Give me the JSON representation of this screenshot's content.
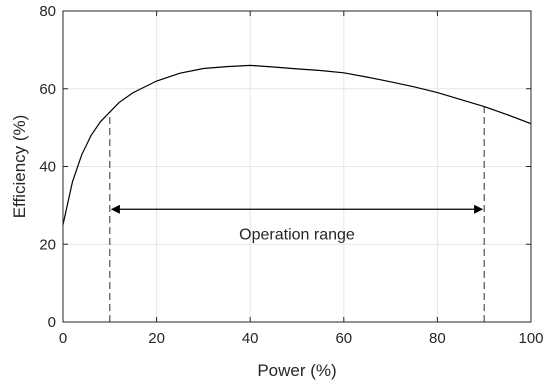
{
  "chart_data": {
    "type": "line",
    "title": "",
    "xlabel": "Power (%)",
    "ylabel": "Efficiency (%)",
    "xlim": [
      0,
      100
    ],
    "ylim": [
      0,
      80
    ],
    "grid": true,
    "xticks": [
      0,
      20,
      40,
      60,
      80,
      100
    ],
    "yticks": [
      0,
      20,
      40,
      60,
      80
    ],
    "series": [
      {
        "name": "",
        "x": [
          0,
          2,
          4,
          6,
          8,
          10,
          12,
          15,
          20,
          25,
          30,
          35,
          40,
          45,
          50,
          55,
          60,
          65,
          70,
          75,
          80,
          85,
          90,
          95,
          100
        ],
        "y": [
          25,
          36,
          43,
          48,
          51.5,
          54,
          56.5,
          59,
          62,
          64,
          65.2,
          65.7,
          66,
          65.6,
          65.1,
          64.7,
          64.1,
          63,
          61.8,
          60.5,
          59,
          57.2,
          55.4,
          53.3,
          51
        ]
      }
    ],
    "annotations": {
      "vlines": [
        10,
        90
      ],
      "arrow": {
        "x_start": 10,
        "x_end": 90,
        "y": 29,
        "text": "Operation range"
      }
    },
    "colors": {
      "line": "#000000",
      "grid": "#e6e6e6",
      "axis": "#262626",
      "vline": "#404040"
    }
  }
}
